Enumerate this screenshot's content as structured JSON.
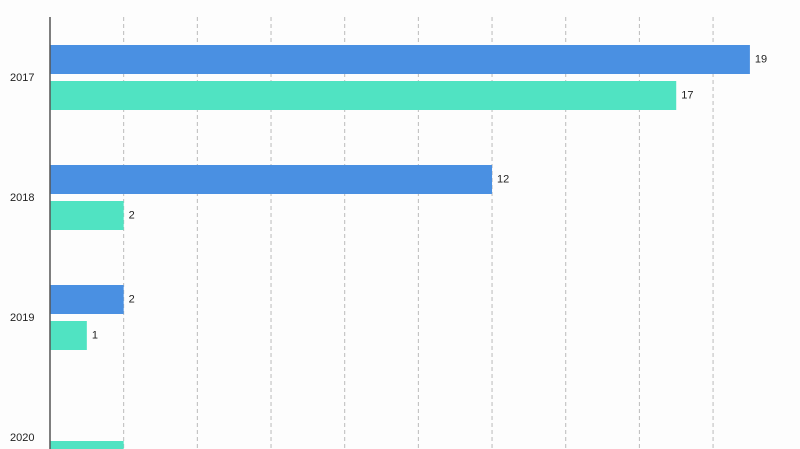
{
  "chart_data": {
    "type": "hbar",
    "categories": [
      "2017",
      "2018",
      "2019",
      "2020"
    ],
    "series": [
      {
        "color": "#4a90e2",
        "values": [
          19,
          12,
          2,
          null
        ]
      },
      {
        "color": "#50e3c2",
        "values": [
          17,
          2,
          1,
          2
        ]
      }
    ],
    "xlim": [
      0,
      20.36
    ],
    "xticks": [
      2,
      4,
      6,
      8,
      10,
      12,
      14,
      16,
      18
    ],
    "grid": true
  }
}
